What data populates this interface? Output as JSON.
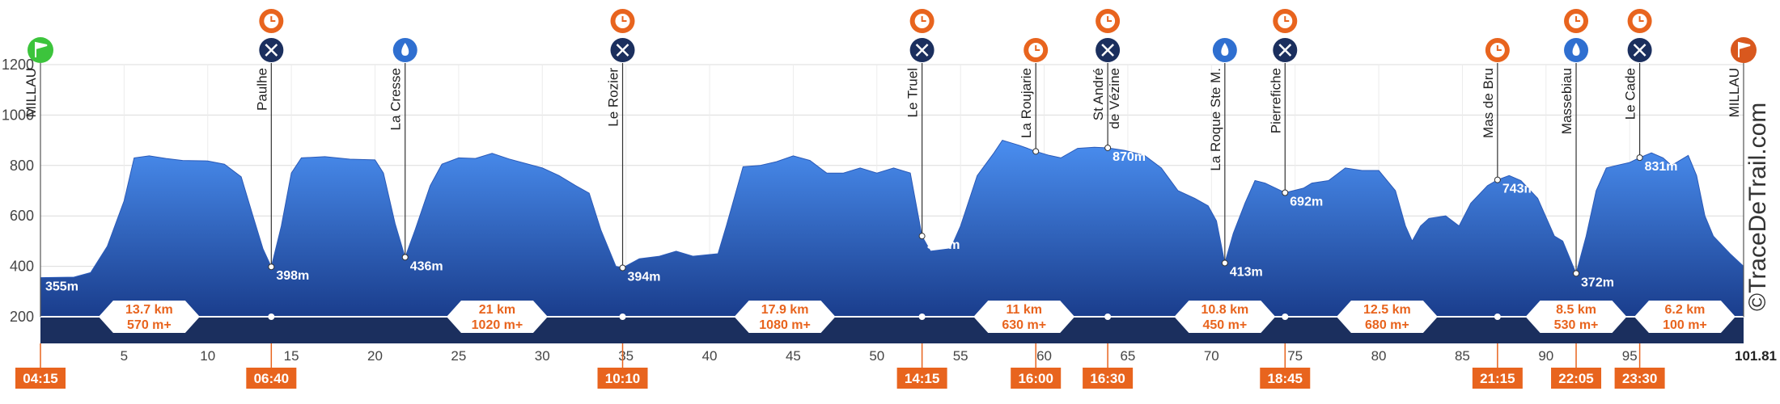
{
  "chart_data": {
    "type": "area",
    "title": "",
    "xlabel": "",
    "ylabel": "",
    "xlim": [
      0,
      101.81
    ],
    "ylim": [
      200,
      1200
    ],
    "x_ticks": [
      5,
      10,
      15,
      20,
      25,
      30,
      35,
      40,
      45,
      50,
      55,
      60,
      65,
      70,
      75,
      80,
      85,
      90,
      95
    ],
    "y_ticks": [
      200,
      400,
      600,
      800,
      1000,
      1200
    ],
    "end_distance_label": "101.81",
    "credit": "©TraceDeTrail.com",
    "colors": {
      "profile_top": "#4a8ef0",
      "profile_bottom": "#1a3d8c",
      "band": "#1b2f5e",
      "time_box": "#e8641e",
      "cutoff_icon": "#e8641e",
      "food_icon": "#1b2f5e",
      "water_icon": "#2f6fd0",
      "start_icon": "#3cc43c",
      "finish_icon": "#d9581e"
    },
    "profile": [
      [
        0,
        355
      ],
      [
        2,
        357
      ],
      [
        3,
        375
      ],
      [
        4,
        480
      ],
      [
        5,
        660
      ],
      [
        5.6,
        830
      ],
      [
        6.5,
        838
      ],
      [
        7.5,
        828
      ],
      [
        8.5,
        820
      ],
      [
        10,
        818
      ],
      [
        11,
        805
      ],
      [
        12,
        755
      ],
      [
        12.7,
        600
      ],
      [
        13.3,
        470
      ],
      [
        13.8,
        398
      ],
      [
        14.4,
        560
      ],
      [
        15,
        770
      ],
      [
        15.6,
        830
      ],
      [
        17,
        835
      ],
      [
        18.5,
        825
      ],
      [
        20,
        822
      ],
      [
        20.5,
        770
      ],
      [
        21.2,
        570
      ],
      [
        21.8,
        436
      ],
      [
        22.4,
        545
      ],
      [
        23.3,
        720
      ],
      [
        24,
        805
      ],
      [
        25,
        830
      ],
      [
        26,
        828
      ],
      [
        27,
        848
      ],
      [
        28,
        826
      ],
      [
        30,
        790
      ],
      [
        31,
        760
      ],
      [
        32,
        720
      ],
      [
        32.8,
        690
      ],
      [
        33.5,
        545
      ],
      [
        34.4,
        400
      ],
      [
        34.8,
        394
      ],
      [
        35.8,
        430
      ],
      [
        37,
        440
      ],
      [
        38,
        460
      ],
      [
        39,
        440
      ],
      [
        40.5,
        450
      ],
      [
        41,
        560
      ],
      [
        42,
        795
      ],
      [
        43,
        800
      ],
      [
        44,
        815
      ],
      [
        45,
        838
      ],
      [
        46,
        820
      ],
      [
        47,
        770
      ],
      [
        48,
        770
      ],
      [
        49,
        790
      ],
      [
        50,
        770
      ],
      [
        51,
        790
      ],
      [
        52,
        770
      ],
      [
        52.7,
        520
      ],
      [
        53.2,
        460
      ],
      [
        54.4,
        470
      ],
      [
        55,
        560
      ],
      [
        56,
        760
      ],
      [
        57,
        850
      ],
      [
        57.5,
        900
      ],
      [
        58,
        890
      ],
      [
        58.5,
        880
      ],
      [
        59.5,
        856
      ],
      [
        60.3,
        840
      ],
      [
        61,
        830
      ],
      [
        62,
        868
      ],
      [
        63,
        872
      ],
      [
        63.8,
        870
      ],
      [
        64.8,
        860
      ],
      [
        66,
        840
      ],
      [
        67,
        790
      ],
      [
        68,
        700
      ],
      [
        69,
        670
      ],
      [
        69.8,
        640
      ],
      [
        70.3,
        580
      ],
      [
        70.8,
        413
      ],
      [
        71.3,
        530
      ],
      [
        72,
        650
      ],
      [
        72.6,
        740
      ],
      [
        73.2,
        730
      ],
      [
        74.4,
        692
      ],
      [
        75.5,
        710
      ],
      [
        76,
        730
      ],
      [
        77,
        740
      ],
      [
        78,
        790
      ],
      [
        79,
        780
      ],
      [
        80,
        780
      ],
      [
        81,
        700
      ],
      [
        81.6,
        560
      ],
      [
        82,
        500
      ],
      [
        82.5,
        560
      ],
      [
        83,
        590
      ],
      [
        84,
        600
      ],
      [
        84.8,
        560
      ],
      [
        85.5,
        650
      ],
      [
        86.5,
        720
      ],
      [
        87.1,
        743
      ],
      [
        87.8,
        760
      ],
      [
        88.5,
        740
      ],
      [
        89.5,
        670
      ],
      [
        90.5,
        520
      ],
      [
        91,
        500
      ],
      [
        91.8,
        372
      ],
      [
        92.4,
        520
      ],
      [
        93,
        700
      ],
      [
        93.6,
        790
      ],
      [
        94.2,
        800
      ],
      [
        95,
        812
      ],
      [
        95.6,
        831
      ],
      [
        96.3,
        850
      ],
      [
        97,
        830
      ],
      [
        97.5,
        800
      ],
      [
        98,
        820
      ],
      [
        98.5,
        840
      ],
      [
        99,
        760
      ],
      [
        99.5,
        600
      ],
      [
        100,
        520
      ],
      [
        101,
        450
      ],
      [
        101.81,
        400
      ]
    ],
    "waypoints": [
      {
        "name": "MILLAU",
        "km": 0,
        "elev": 355,
        "elev_label": "355m",
        "marker": "start"
      },
      {
        "name": "Paulhe",
        "km": 13.8,
        "elev": 398,
        "elev_label": "398m",
        "marker": "cutoff-food"
      },
      {
        "name": "La Cresse",
        "km": 21.8,
        "elev": 436,
        "elev_label": "436m",
        "marker": "water"
      },
      {
        "name": "Le Rozier",
        "km": 34.8,
        "elev": 394,
        "elev_label": "394m",
        "marker": "cutoff-food"
      },
      {
        "name": "Le Truel",
        "km": 52.7,
        "elev": 520,
        "elev_label": "520m",
        "marker": "cutoff-food"
      },
      {
        "name": "La Roujarie",
        "km": 59.5,
        "elev": 856,
        "elev_label": "",
        "marker": "cutoff"
      },
      {
        "name": "St André",
        "name2": "de Vézine",
        "km": 63.8,
        "elev": 870,
        "elev_label": "870m",
        "marker": "cutoff-food"
      },
      {
        "name": "La Roque Ste M.",
        "km": 70.8,
        "elev": 413,
        "elev_label": "413m",
        "marker": "water"
      },
      {
        "name": "Pierrefiche",
        "km": 74.4,
        "elev": 692,
        "elev_label": "692m",
        "marker": "cutoff-food"
      },
      {
        "name": "Mas de Bru",
        "km": 87.1,
        "elev": 743,
        "elev_label": "743m",
        "marker": "cutoff"
      },
      {
        "name": "Massebiau",
        "km": 91.8,
        "elev": 372,
        "elev_label": "372m",
        "marker": "cutoff-water"
      },
      {
        "name": "Le Cade",
        "km": 95.6,
        "elev": 831,
        "elev_label": "831m",
        "marker": "cutoff-food"
      },
      {
        "name": "MILLAU",
        "km": 101.81,
        "elev": 400,
        "elev_label": "",
        "marker": "finish"
      }
    ],
    "segments": [
      {
        "dist": "13.7 km",
        "gain": "570 m+"
      },
      {
        "dist": "21 km",
        "gain": "1020 m+"
      },
      {
        "dist": "17.9 km",
        "gain": "1080 m+"
      },
      {
        "dist": "11 km",
        "gain": "630 m+"
      },
      {
        "dist": "10.8 km",
        "gain": "450 m+"
      },
      {
        "dist": "12.5 km",
        "gain": "680 m+"
      },
      {
        "dist": "8.5 km",
        "gain": "530 m+"
      },
      {
        "dist": "6.2 km",
        "gain": "100 m+"
      }
    ],
    "segment_centers_km": [
      6.5,
      27.3,
      44.5,
      58.8,
      70.8,
      80.5,
      91.8,
      98.3
    ],
    "segment_dots_km": [
      13.8,
      34.8,
      52.7,
      63.8,
      74.4,
      87.1,
      95.6
    ],
    "times": [
      {
        "label": "04:15",
        "km": 0
      },
      {
        "label": "06:40",
        "km": 13.8
      },
      {
        "label": "10:10",
        "km": 34.8
      },
      {
        "label": "14:15",
        "km": 52.7
      },
      {
        "label": "16:00",
        "km": 59.5
      },
      {
        "label": "16:30",
        "km": 63.8
      },
      {
        "label": "18:45",
        "km": 74.4
      },
      {
        "label": "21:15",
        "km": 87.1
      },
      {
        "label": "22:05",
        "km": 91.8
      },
      {
        "label": "23:30",
        "km": 95.6
      }
    ]
  }
}
